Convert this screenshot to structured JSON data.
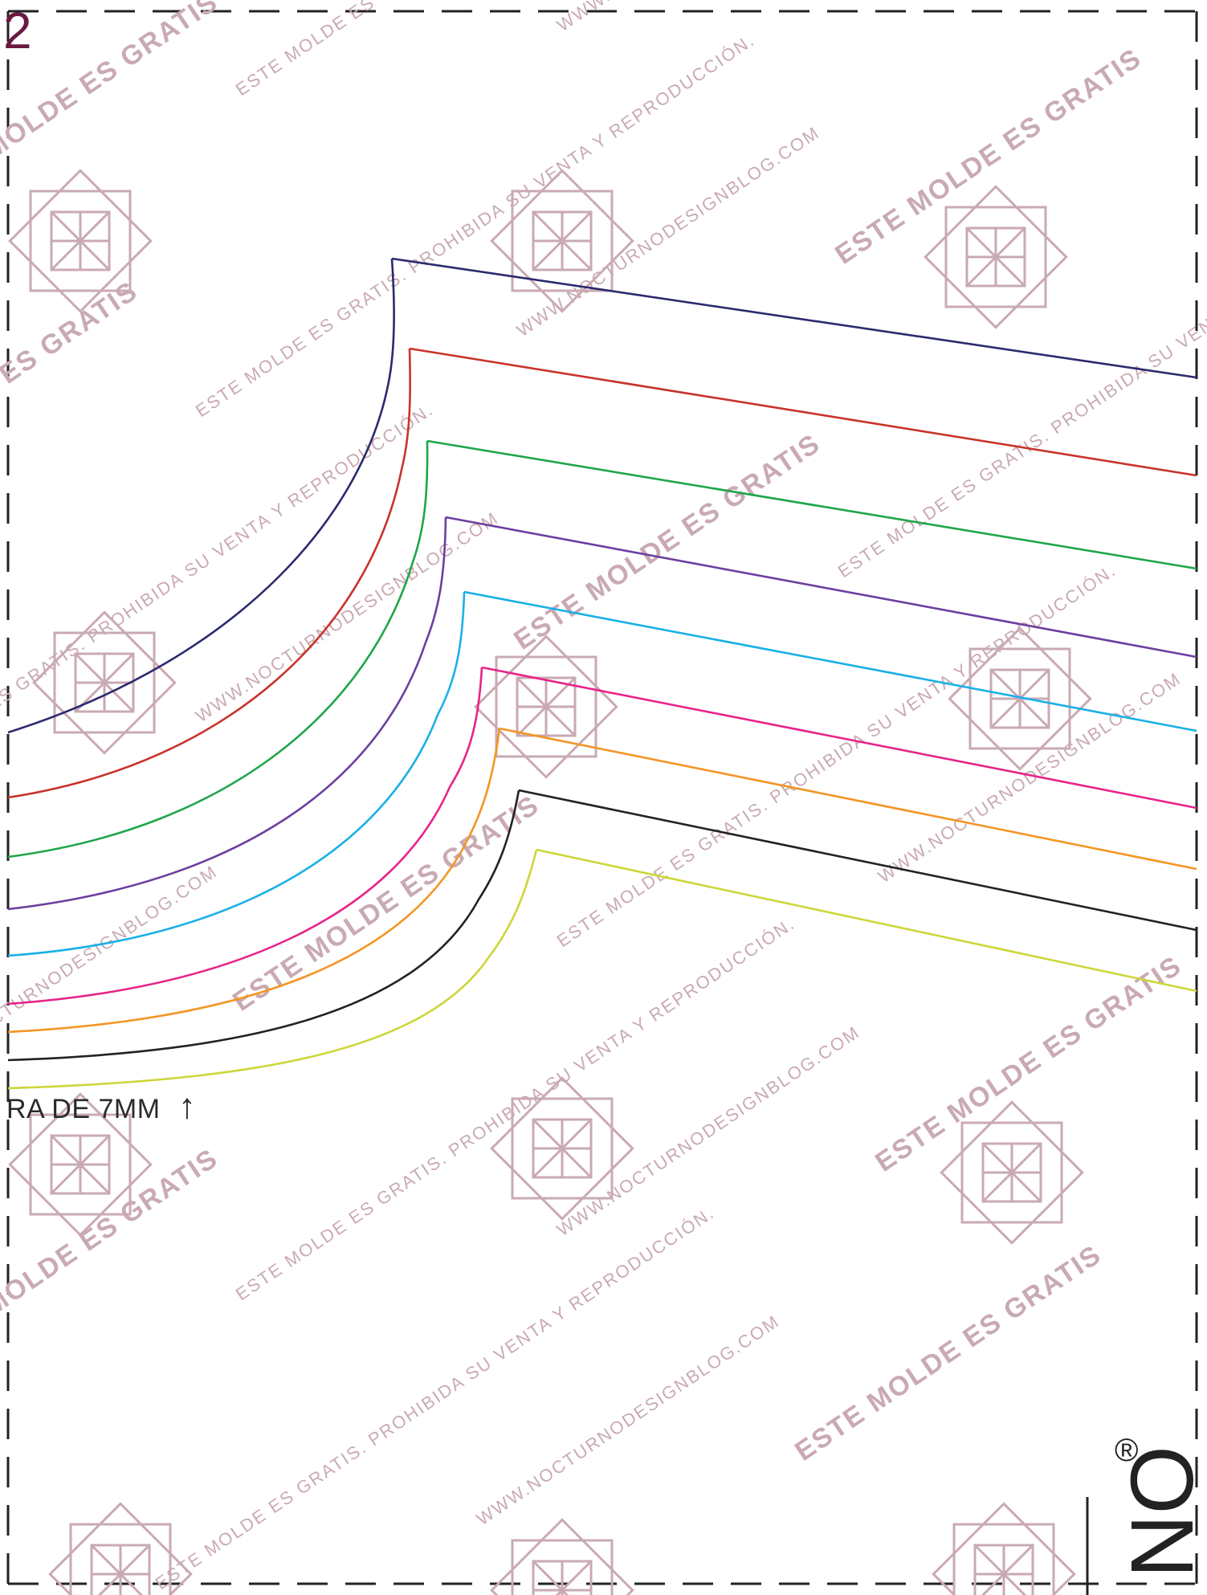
{
  "page": {
    "number": "2",
    "seam_allowance_note": "RA DE 7MM",
    "arrow_glyph": "↑",
    "registered_mark": "®",
    "logo_fragment": "NO"
  },
  "watermark": {
    "texts": [
      "ESTE MOLDE ES GRATIS",
      "ESTE MOLDE ES GRATIS. PROHIBIDA SU VENTA Y REPRODUCCIÓN.",
      "WWW.NOCTURNODESIGNBLOG.COM"
    ],
    "color": "#c9aab3",
    "icon": "geometric-star-watermark-icon"
  },
  "colors": {
    "page_number": "#6a1a40",
    "size_lines": [
      "#2b2a6e",
      "#c8332b",
      "#1fa64a",
      "#6b3fa0",
      "#1ab0e8",
      "#e7248a",
      "#f39524",
      "#222222",
      "#cdd63a"
    ]
  }
}
